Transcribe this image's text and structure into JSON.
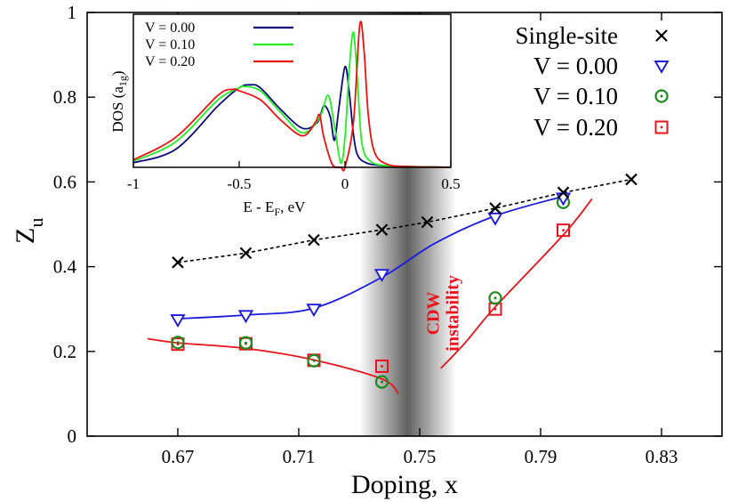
{
  "chart_data": {
    "type": "scatter",
    "xlabel": "Doping, x",
    "ylabel": "Z",
    "ylabel_sub": "u",
    "xlim": [
      0.64,
      0.85
    ],
    "ylim": [
      0,
      1
    ],
    "xticks": [
      "0.67",
      "0.71",
      "0.75",
      "0.79",
      "0.83"
    ],
    "yticks": [
      "0",
      "0.2",
      "0.4",
      "0.6",
      "0.8",
      "1"
    ],
    "legend_position": "top-right",
    "shaded_band": {
      "x_from": 0.73,
      "x_to": 0.762,
      "center": 0.747
    },
    "annotation": {
      "line1": "CDW",
      "line2": "instability"
    },
    "series": [
      {
        "name": "Single-site",
        "marker": "cross",
        "color": "#000000",
        "line": "dashed",
        "x": [
          0.67,
          0.6925,
          0.715,
          0.7375,
          0.7525,
          0.775,
          0.7975,
          0.82
        ],
        "y": [
          0.41,
          0.432,
          0.463,
          0.487,
          0.505,
          0.538,
          0.575,
          0.606
        ]
      },
      {
        "name": "V = 0.00",
        "marker": "triangle-down",
        "color": "#1a1adc",
        "line": "solid",
        "x": [
          0.67,
          0.6925,
          0.715,
          0.7375,
          0.775,
          0.7975
        ],
        "y": [
          0.275,
          0.285,
          0.3,
          0.382,
          0.515,
          0.562
        ],
        "curve_x": [
          0.67,
          0.6925,
          0.715,
          0.7375,
          0.755,
          0.775,
          0.7975
        ],
        "curve_y": [
          0.277,
          0.286,
          0.302,
          0.375,
          0.455,
          0.52,
          0.566
        ]
      },
      {
        "name": "V = 0.10",
        "marker": "circle-dot",
        "color": "#1a8a1a",
        "line": "none",
        "x": [
          0.67,
          0.6925,
          0.715,
          0.7375,
          0.775,
          0.7975
        ],
        "y": [
          0.221,
          0.22,
          0.178,
          0.128,
          0.326,
          0.552
        ]
      },
      {
        "name": "V = 0.20",
        "marker": "square-dot",
        "color": "#e8141c",
        "line": "solid",
        "x": [
          0.67,
          0.6925,
          0.715,
          0.7375,
          0.775,
          0.7975
        ],
        "y": [
          0.217,
          0.218,
          0.179,
          0.165,
          0.3,
          0.486
        ],
        "curve_left_x": [
          0.66,
          0.67,
          0.6925,
          0.715,
          0.7375,
          0.743
        ],
        "curve_left_y": [
          0.23,
          0.22,
          0.207,
          0.18,
          0.135,
          0.1
        ],
        "curve_right_x": [
          0.757,
          0.765,
          0.775,
          0.7975,
          0.807
        ],
        "curve_right_y": [
          0.16,
          0.22,
          0.305,
          0.475,
          0.56
        ]
      }
    ],
    "inset": {
      "ylabel": "DOS (a",
      "ylabel_sub": "1g",
      "ylabel_close": ")",
      "xlabel": "E - E",
      "xlabel_sub": "F",
      "xlabel_suffix": ", eV",
      "xlim": [
        -1,
        0.5
      ],
      "xticks": [
        "-1",
        "-0.5",
        "0",
        "0.5"
      ],
      "legend_position": "top-left",
      "series": [
        {
          "name": "V = 0.00",
          "color": "#0a0a7a",
          "x": [
            -1,
            -0.8,
            -0.6,
            -0.5,
            -0.45,
            -0.4,
            -0.3,
            -0.2,
            -0.13,
            -0.1,
            -0.07,
            -0.05,
            -0.03,
            0.0,
            0.02,
            0.04,
            0.06,
            0.1,
            0.15,
            0.2,
            0.3,
            0.5
          ],
          "y": [
            0.03,
            0.12,
            0.41,
            0.53,
            0.55,
            0.53,
            0.38,
            0.26,
            0.3,
            0.41,
            0.34,
            0.18,
            0.38,
            0.67,
            0.5,
            0.22,
            0.08,
            0.03,
            0.015,
            0.01,
            0.005,
            0
          ]
        },
        {
          "name": "V = 0.10",
          "color": "#22ee22",
          "x": [
            -1,
            -0.8,
            -0.6,
            -0.5,
            -0.48,
            -0.4,
            -0.3,
            -0.2,
            -0.12,
            -0.08,
            -0.05,
            -0.02,
            0.0,
            0.02,
            0.04,
            0.06,
            0.08,
            0.12,
            0.2,
            0.3,
            0.5
          ],
          "y": [
            0.04,
            0.17,
            0.45,
            0.53,
            0.54,
            0.51,
            0.36,
            0.23,
            0.33,
            0.48,
            0.28,
            0.03,
            0.2,
            0.65,
            0.9,
            0.55,
            0.16,
            0.04,
            0.01,
            0.005,
            0
          ]
        },
        {
          "name": "V = 0.20",
          "color": "#ee1111",
          "x": [
            -1,
            -0.8,
            -0.6,
            -0.53,
            -0.5,
            -0.4,
            -0.3,
            -0.2,
            -0.14,
            -0.12,
            -0.1,
            -0.06,
            -0.02,
            0.0,
            0.04,
            0.07,
            0.09,
            0.11,
            0.14,
            0.2,
            0.3,
            0.5
          ],
          "y": [
            0.05,
            0.2,
            0.48,
            0.52,
            0.51,
            0.45,
            0.31,
            0.21,
            0.3,
            0.35,
            0.2,
            0.02,
            0.0,
            0.0,
            0.3,
            0.95,
            0.78,
            0.35,
            0.1,
            0.02,
            0.005,
            0
          ]
        }
      ]
    }
  }
}
